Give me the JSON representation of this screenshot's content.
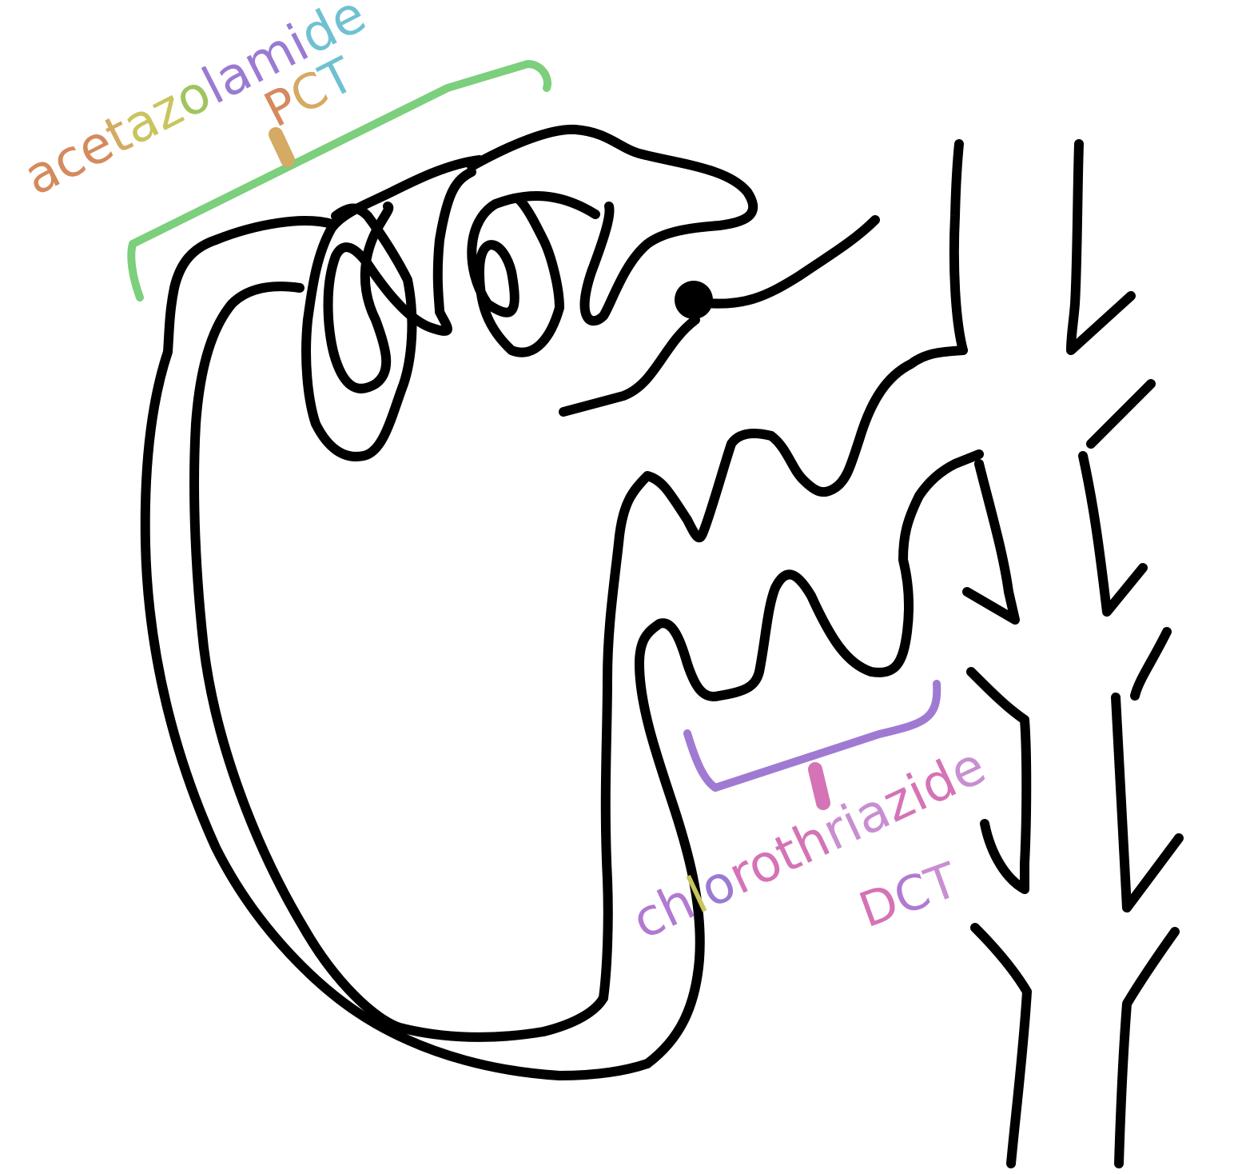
{
  "diagram": {
    "labels": {
      "pct_drug": "acetazolamide",
      "pct_segment": "PCT",
      "dct_drug": "chlorothriazide",
      "dct_segment": "DCT"
    },
    "colors": {
      "outline": "#000000",
      "pct_bracket": "#7ccf7c",
      "pct_tick": "#d4aa64",
      "dct_bracket": "#a07ad2",
      "dct_tick": "#d473b5",
      "pct_letters": [
        "#d48a5e",
        "#d48a5e",
        "#d48a5e",
        "#d4aa64",
        "#c9c45e",
        "#c9c45e",
        "#a0c45e",
        "#9a7ad2",
        "#9a7ad2",
        "#9a7ad2",
        "#9a7ad2",
        "#6fc1d1",
        "#6fc1d1"
      ],
      "pct_segment_letters": [
        "#d48a5e",
        "#d4aa64",
        "#6fc1d1"
      ],
      "dct_letters": [
        "#b07ad2",
        "#b07ad2",
        "#c9c45e",
        "#9a7ad2",
        "#d473b5",
        "#d473b5",
        "#d473b5",
        "#d473b5",
        "#c98ed2",
        "#c98ed2",
        "#c98ed2",
        "#d473b5",
        "#d473b5",
        "#d473b5",
        "#c98ed2"
      ],
      "dct_segment_letters": [
        "#d473b5",
        "#b07ad2",
        "#c98ed2"
      ]
    }
  }
}
